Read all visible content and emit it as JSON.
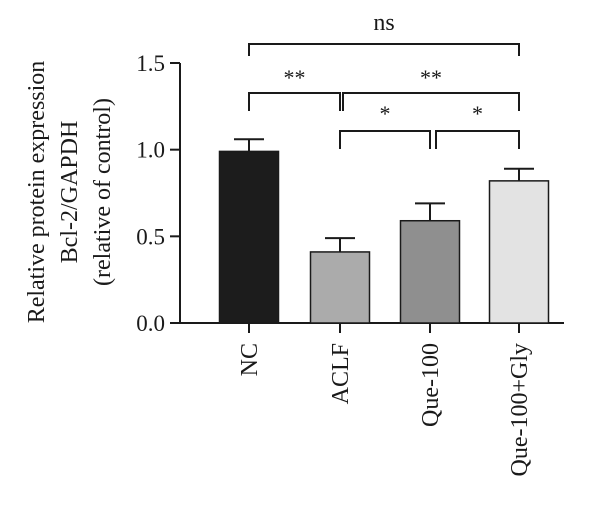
{
  "chart_data": {
    "type": "bar",
    "categories": [
      "NC",
      "ACLF",
      "Que-100",
      "Que-100+Gly"
    ],
    "values": [
      0.99,
      0.41,
      0.59,
      0.82
    ],
    "errors": [
      0.07,
      0.08,
      0.1,
      0.07
    ],
    "colors": [
      "#1c1c1c",
      "#ababab",
      "#8f8f8f",
      "#e3e3e3"
    ],
    "ylabel_lines": [
      "Relative protein expression",
      "Bcl-2/GAPDH",
      "(relative of control)"
    ],
    "ylim": [
      0,
      1.5
    ],
    "yticks": [
      0.0,
      0.5,
      1.0,
      1.5
    ],
    "ytick_labels": [
      "0.0",
      "0.5",
      "1.0",
      "1.5"
    ],
    "significance": [
      {
        "from": 0,
        "to": 3,
        "label": "ns"
      },
      {
        "from": 0,
        "to": 1,
        "label": "**"
      },
      {
        "from": 1,
        "to": 3,
        "label": "**"
      },
      {
        "from": 1,
        "to": 2,
        "label": "*"
      },
      {
        "from": 2,
        "to": 3,
        "label": "*"
      }
    ]
  }
}
